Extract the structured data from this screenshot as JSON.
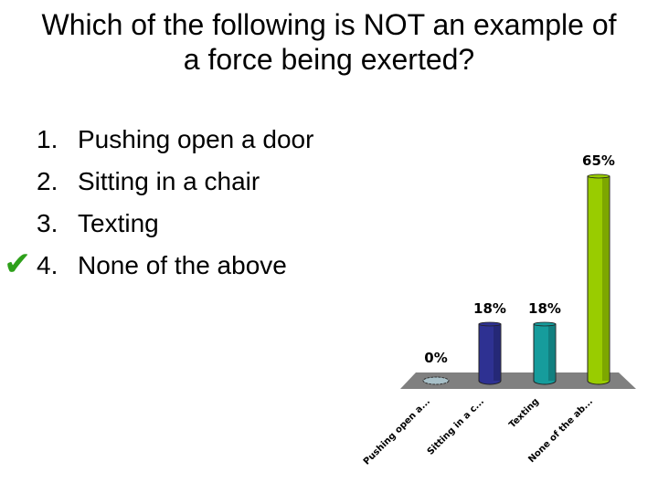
{
  "title": "Which of the following is NOT an example of a force being exerted?",
  "options": [
    {
      "num": "1.",
      "text": "Pushing open a door",
      "correct": false
    },
    {
      "num": "2.",
      "text": "Sitting in a chair",
      "correct": false
    },
    {
      "num": "3.",
      "text": "Texting",
      "correct": false
    },
    {
      "num": "4.",
      "text": "None of the above",
      "correct": true
    }
  ],
  "check_icon": "checkmark-icon",
  "chart_data": {
    "type": "bar",
    "categories": [
      "Pushing open a...",
      "Sitting in a c...",
      "Texting",
      "None of the ab..."
    ],
    "values": [
      0,
      18,
      18,
      65
    ],
    "data_labels": [
      "0%",
      "18%",
      "18%",
      "65%"
    ],
    "colors": [
      "#a8c0c8",
      "#2e3192",
      "#169c9c",
      "#99cc00"
    ],
    "floor_color": "#808080",
    "ylim": [
      0,
      65
    ],
    "grid": false,
    "style": "3d-cylinder"
  }
}
